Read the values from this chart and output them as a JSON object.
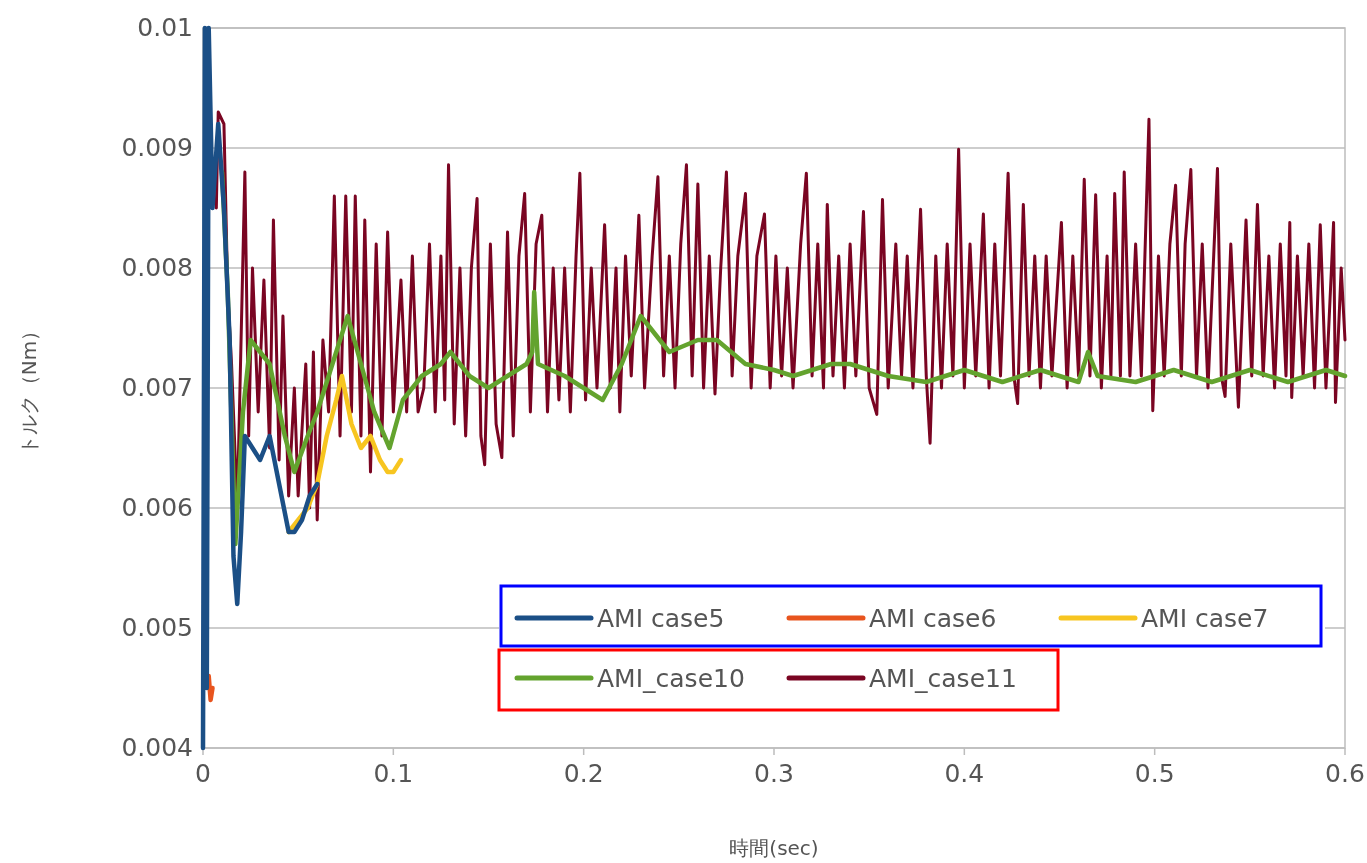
{
  "chart_data": {
    "type": "line",
    "xlabel": "時間(sec)",
    "ylabel": "トルク（Nm）",
    "xlim": [
      0,
      0.6
    ],
    "xticks": [
      0,
      0.1,
      0.2,
      0.3,
      0.4,
      0.5,
      0.6
    ],
    "ylim": [
      0.004,
      0.01
    ],
    "yticks": [
      0.004,
      0.005,
      0.006,
      0.007,
      0.008,
      0.009,
      0.01
    ],
    "grid": "y",
    "legend": "bottom right",
    "line_style": "solid",
    "marker": "none",
    "series": [
      {
        "name": "AMI case5",
        "color": "#1b4f86",
        "x": [
          0,
          0.001,
          0.002,
          0.003,
          0.005,
          0.008,
          0.011,
          0.014,
          0.016,
          0.018,
          0.02,
          0.022,
          0.026,
          0.03,
          0.035,
          0.04,
          0.045,
          0.048,
          0.052,
          0.056,
          0.06
        ],
        "values": [
          0.004,
          0.01,
          0.0045,
          0.01,
          0.0085,
          0.0092,
          0.0085,
          0.0074,
          0.0056,
          0.0052,
          0.0058,
          0.0066,
          0.0065,
          0.0064,
          0.0066,
          0.0062,
          0.0058,
          0.0058,
          0.0059,
          0.0061,
          0.0062
        ]
      },
      {
        "name": "AMI case6",
        "color": "#e8541e",
        "x": [
          0.003,
          0.004,
          0.005
        ],
        "values": [
          0.0046,
          0.0044,
          0.0045
        ]
      },
      {
        "name": "AMI case7",
        "color": "#f7c520",
        "x": [
          0.045,
          0.05,
          0.055,
          0.06,
          0.065,
          0.07,
          0.073,
          0.078,
          0.083,
          0.088,
          0.093,
          0.097,
          0.1,
          0.104
        ],
        "values": [
          0.0058,
          0.0059,
          0.006,
          0.0062,
          0.0066,
          0.0069,
          0.0071,
          0.0067,
          0.0065,
          0.0066,
          0.0064,
          0.0063,
          0.0063,
          0.0064
        ]
      },
      {
        "name": "AMI_case10",
        "color": "#63a32e",
        "x": [
          0.01,
          0.013,
          0.017,
          0.021,
          0.025,
          0.03,
          0.035,
          0.043,
          0.048,
          0.055,
          0.06,
          0.07,
          0.076,
          0.083,
          0.09,
          0.098,
          0.105,
          0.115,
          0.125,
          0.13,
          0.14,
          0.15,
          0.16,
          0.17,
          0.173,
          0.174,
          0.176,
          0.19,
          0.2,
          0.21,
          0.22,
          0.23,
          0.245,
          0.26,
          0.27,
          0.285,
          0.3,
          0.31,
          0.33,
          0.34,
          0.36,
          0.38,
          0.4,
          0.42,
          0.44,
          0.46,
          0.465,
          0.47,
          0.49,
          0.51,
          0.53,
          0.55,
          0.57,
          0.59,
          0.6
        ],
        "values": [
          0.0088,
          0.0078,
          0.0057,
          0.0068,
          0.0074,
          0.0073,
          0.0072,
          0.0066,
          0.0063,
          0.0066,
          0.0068,
          0.0073,
          0.0076,
          0.0072,
          0.0068,
          0.0065,
          0.0069,
          0.0071,
          0.0072,
          0.0073,
          0.0071,
          0.007,
          0.0071,
          0.0072,
          0.0073,
          0.0078,
          0.0072,
          0.0071,
          0.007,
          0.0069,
          0.0072,
          0.0076,
          0.0073,
          0.0074,
          0.0074,
          0.0072,
          0.00715,
          0.0071,
          0.0072,
          0.0072,
          0.0071,
          0.00705,
          0.00715,
          0.00705,
          0.00715,
          0.00705,
          0.0073,
          0.0071,
          0.00705,
          0.00715,
          0.00705,
          0.00715,
          0.00705,
          0.00715,
          0.0071
        ]
      },
      {
        "name": "AMI_case11",
        "color": "#7a0522",
        "x": [
          0.007,
          0.008,
          0.011,
          0.013,
          0.015,
          0.018,
          0.022,
          0.024,
          0.026,
          0.029,
          0.032,
          0.035,
          0.037,
          0.04,
          0.042,
          0.045,
          0.048,
          0.05,
          0.054,
          0.056,
          0.058,
          0.06,
          0.063,
          0.066,
          0.069,
          0.072,
          0.075,
          0.078,
          0.08,
          0.083,
          0.085,
          0.088,
          0.091,
          0.094,
          0.097,
          0.1,
          0.104,
          0.107,
          0.11,
          0.113,
          0.116,
          0.119,
          0.122,
          0.125,
          0.127,
          0.129,
          0.132,
          0.135,
          0.138,
          0.141,
          0.144,
          0.146,
          0.148,
          0.151,
          0.154,
          0.157,
          0.16,
          0.163,
          0.166,
          0.169,
          0.172,
          0.175,
          0.178,
          0.181,
          0.184,
          0.187,
          0.19,
          0.193,
          0.196,
          0.198,
          0.201,
          0.204,
          0.207,
          0.211,
          0.214,
          0.217,
          0.219,
          0.222,
          0.225,
          0.229,
          0.232,
          0.236,
          0.239,
          0.242,
          0.245,
          0.248,
          0.251,
          0.254,
          0.257,
          0.26,
          0.263,
          0.266,
          0.269,
          0.272,
          0.275,
          0.278,
          0.281,
          0.285,
          0.288,
          0.291,
          0.295,
          0.298,
          0.301,
          0.304,
          0.307,
          0.31,
          0.314,
          0.317,
          0.32,
          0.323,
          0.326,
          0.328,
          0.331,
          0.334,
          0.337,
          0.34,
          0.343,
          0.347,
          0.35,
          0.354,
          0.357,
          0.36,
          0.364,
          0.367,
          0.37,
          0.373,
          0.377,
          0.38,
          0.382,
          0.385,
          0.388,
          0.391,
          0.394,
          0.397,
          0.4,
          0.403,
          0.406,
          0.41,
          0.413,
          0.416,
          0.419,
          0.423,
          0.426,
          0.428,
          0.431,
          0.434,
          0.437,
          0.44,
          0.443,
          0.446,
          0.451,
          0.454,
          0.457,
          0.46,
          0.463,
          0.466,
          0.469,
          0.472,
          0.475,
          0.477,
          0.479,
          0.482,
          0.484,
          0.487,
          0.49,
          0.493,
          0.497,
          0.499,
          0.502,
          0.505,
          0.508,
          0.511,
          0.514,
          0.516,
          0.519,
          0.522,
          0.525,
          0.528,
          0.533,
          0.535,
          0.537,
          0.54,
          0.544,
          0.548,
          0.551,
          0.554,
          0.557,
          0.56,
          0.563,
          0.566,
          0.569,
          0.571,
          0.572,
          0.575,
          0.578,
          0.581,
          0.584,
          0.587,
          0.59,
          0.594,
          0.595,
          0.598,
          0.6
        ],
        "values": [
          0.0085,
          0.0093,
          0.0092,
          0.0078,
          0.0072,
          0.006,
          0.0088,
          0.0066,
          0.008,
          0.0068,
          0.0079,
          0.0065,
          0.0084,
          0.0064,
          0.0076,
          0.0061,
          0.007,
          0.0061,
          0.0072,
          0.006,
          0.0073,
          0.0059,
          0.0074,
          0.0068,
          0.0086,
          0.0066,
          0.0086,
          0.0068,
          0.0086,
          0.0066,
          0.0084,
          0.0063,
          0.0082,
          0.0066,
          0.0083,
          0.0068,
          0.0079,
          0.0068,
          0.0081,
          0.0068,
          0.007,
          0.0082,
          0.0068,
          0.0081,
          0.0069,
          0.00886,
          0.0067,
          0.008,
          0.0066,
          0.008,
          0.00858,
          0.0066,
          0.00636,
          0.0082,
          0.0067,
          0.00642,
          0.0083,
          0.0066,
          0.0081,
          0.00862,
          0.0068,
          0.0082,
          0.00844,
          0.0068,
          0.008,
          0.0069,
          0.008,
          0.0068,
          0.0081,
          0.00879,
          0.0069,
          0.008,
          0.007,
          0.00836,
          0.007,
          0.008,
          0.0068,
          0.0081,
          0.0071,
          0.00844,
          0.007,
          0.0081,
          0.00876,
          0.0071,
          0.0081,
          0.007,
          0.0082,
          0.00886,
          0.0071,
          0.0087,
          0.007,
          0.0081,
          0.00695,
          0.008,
          0.0088,
          0.0071,
          0.0081,
          0.00862,
          0.007,
          0.0081,
          0.00845,
          0.007,
          0.0081,
          0.0071,
          0.008,
          0.007,
          0.0082,
          0.00879,
          0.0071,
          0.0082,
          0.007,
          0.00853,
          0.0071,
          0.0081,
          0.007,
          0.0082,
          0.0071,
          0.00847,
          0.007,
          0.00678,
          0.00857,
          0.007,
          0.0082,
          0.0071,
          0.0081,
          0.007,
          0.00849,
          0.0071,
          0.00654,
          0.0081,
          0.007,
          0.0082,
          0.0071,
          0.00899,
          0.007,
          0.0082,
          0.0071,
          0.00845,
          0.007,
          0.0082,
          0.0071,
          0.00879,
          0.0071,
          0.00687,
          0.00853,
          0.0071,
          0.0081,
          0.007,
          0.0081,
          0.0071,
          0.00838,
          0.007,
          0.0081,
          0.0071,
          0.00874,
          0.0071,
          0.00861,
          0.007,
          0.0081,
          0.0071,
          0.00862,
          0.0071,
          0.0088,
          0.0071,
          0.0082,
          0.0071,
          0.00924,
          0.00681,
          0.0081,
          0.0071,
          0.0082,
          0.00869,
          0.0071,
          0.0082,
          0.00882,
          0.0071,
          0.0082,
          0.007,
          0.00883,
          0.0071,
          0.00693,
          0.0082,
          0.00684,
          0.0084,
          0.0071,
          0.00853,
          0.0071,
          0.0081,
          0.007,
          0.0082,
          0.0071,
          0.00838,
          0.00692,
          0.0081,
          0.0071,
          0.0082,
          0.007,
          0.00836,
          0.007,
          0.00838,
          0.00688,
          0.008,
          0.0074
        ]
      }
    ]
  }
}
